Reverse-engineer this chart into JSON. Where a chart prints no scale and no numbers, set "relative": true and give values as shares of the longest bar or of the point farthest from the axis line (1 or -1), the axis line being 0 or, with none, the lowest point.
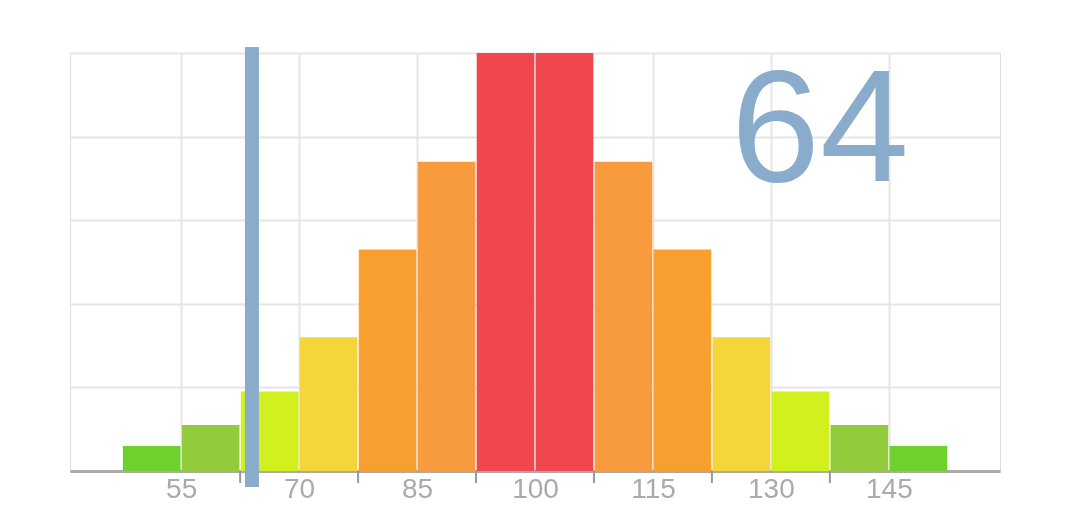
{
  "chart_data": {
    "type": "bar",
    "relative": true,
    "x": [
      51.25,
      58.75,
      66.25,
      73.75,
      81.25,
      88.75,
      96.25,
      103.75,
      111.25,
      118.75,
      126.25,
      133.75,
      141.25,
      148.75
    ],
    "values": [
      0.06,
      0.11,
      0.19,
      0.32,
      0.53,
      0.74,
      1.0,
      1.0,
      0.74,
      0.53,
      0.32,
      0.19,
      0.11,
      0.06
    ],
    "colors": [
      "#6dd12e",
      "#92cc3c",
      "#d2f01e",
      "#f5d63a",
      "#f7a030",
      "#f89a3e",
      "#f0474e",
      "#f0474e",
      "#f89a3e",
      "#f7a030",
      "#f5d63a",
      "#d2f01e",
      "#92cc3c",
      "#6dd12e"
    ],
    "xlim": [
      41.5,
      158.5
    ],
    "xticks": [
      55,
      {
        "value": 62.5,
        "label": null
      },
      70,
      {
        "value": 77.5,
        "label": null
      },
      85,
      {
        "value": 92.5,
        "label": null
      },
      100,
      {
        "value": 107.5,
        "label": null
      },
      115,
      {
        "value": 122.5,
        "label": null
      },
      130,
      {
        "value": 137.5,
        "label": null
      },
      145
    ],
    "ref_lines": [
      {
        "axis": "x",
        "value": 64,
        "label": "64",
        "color": "#8aaccc"
      }
    ],
    "grid": true
  }
}
